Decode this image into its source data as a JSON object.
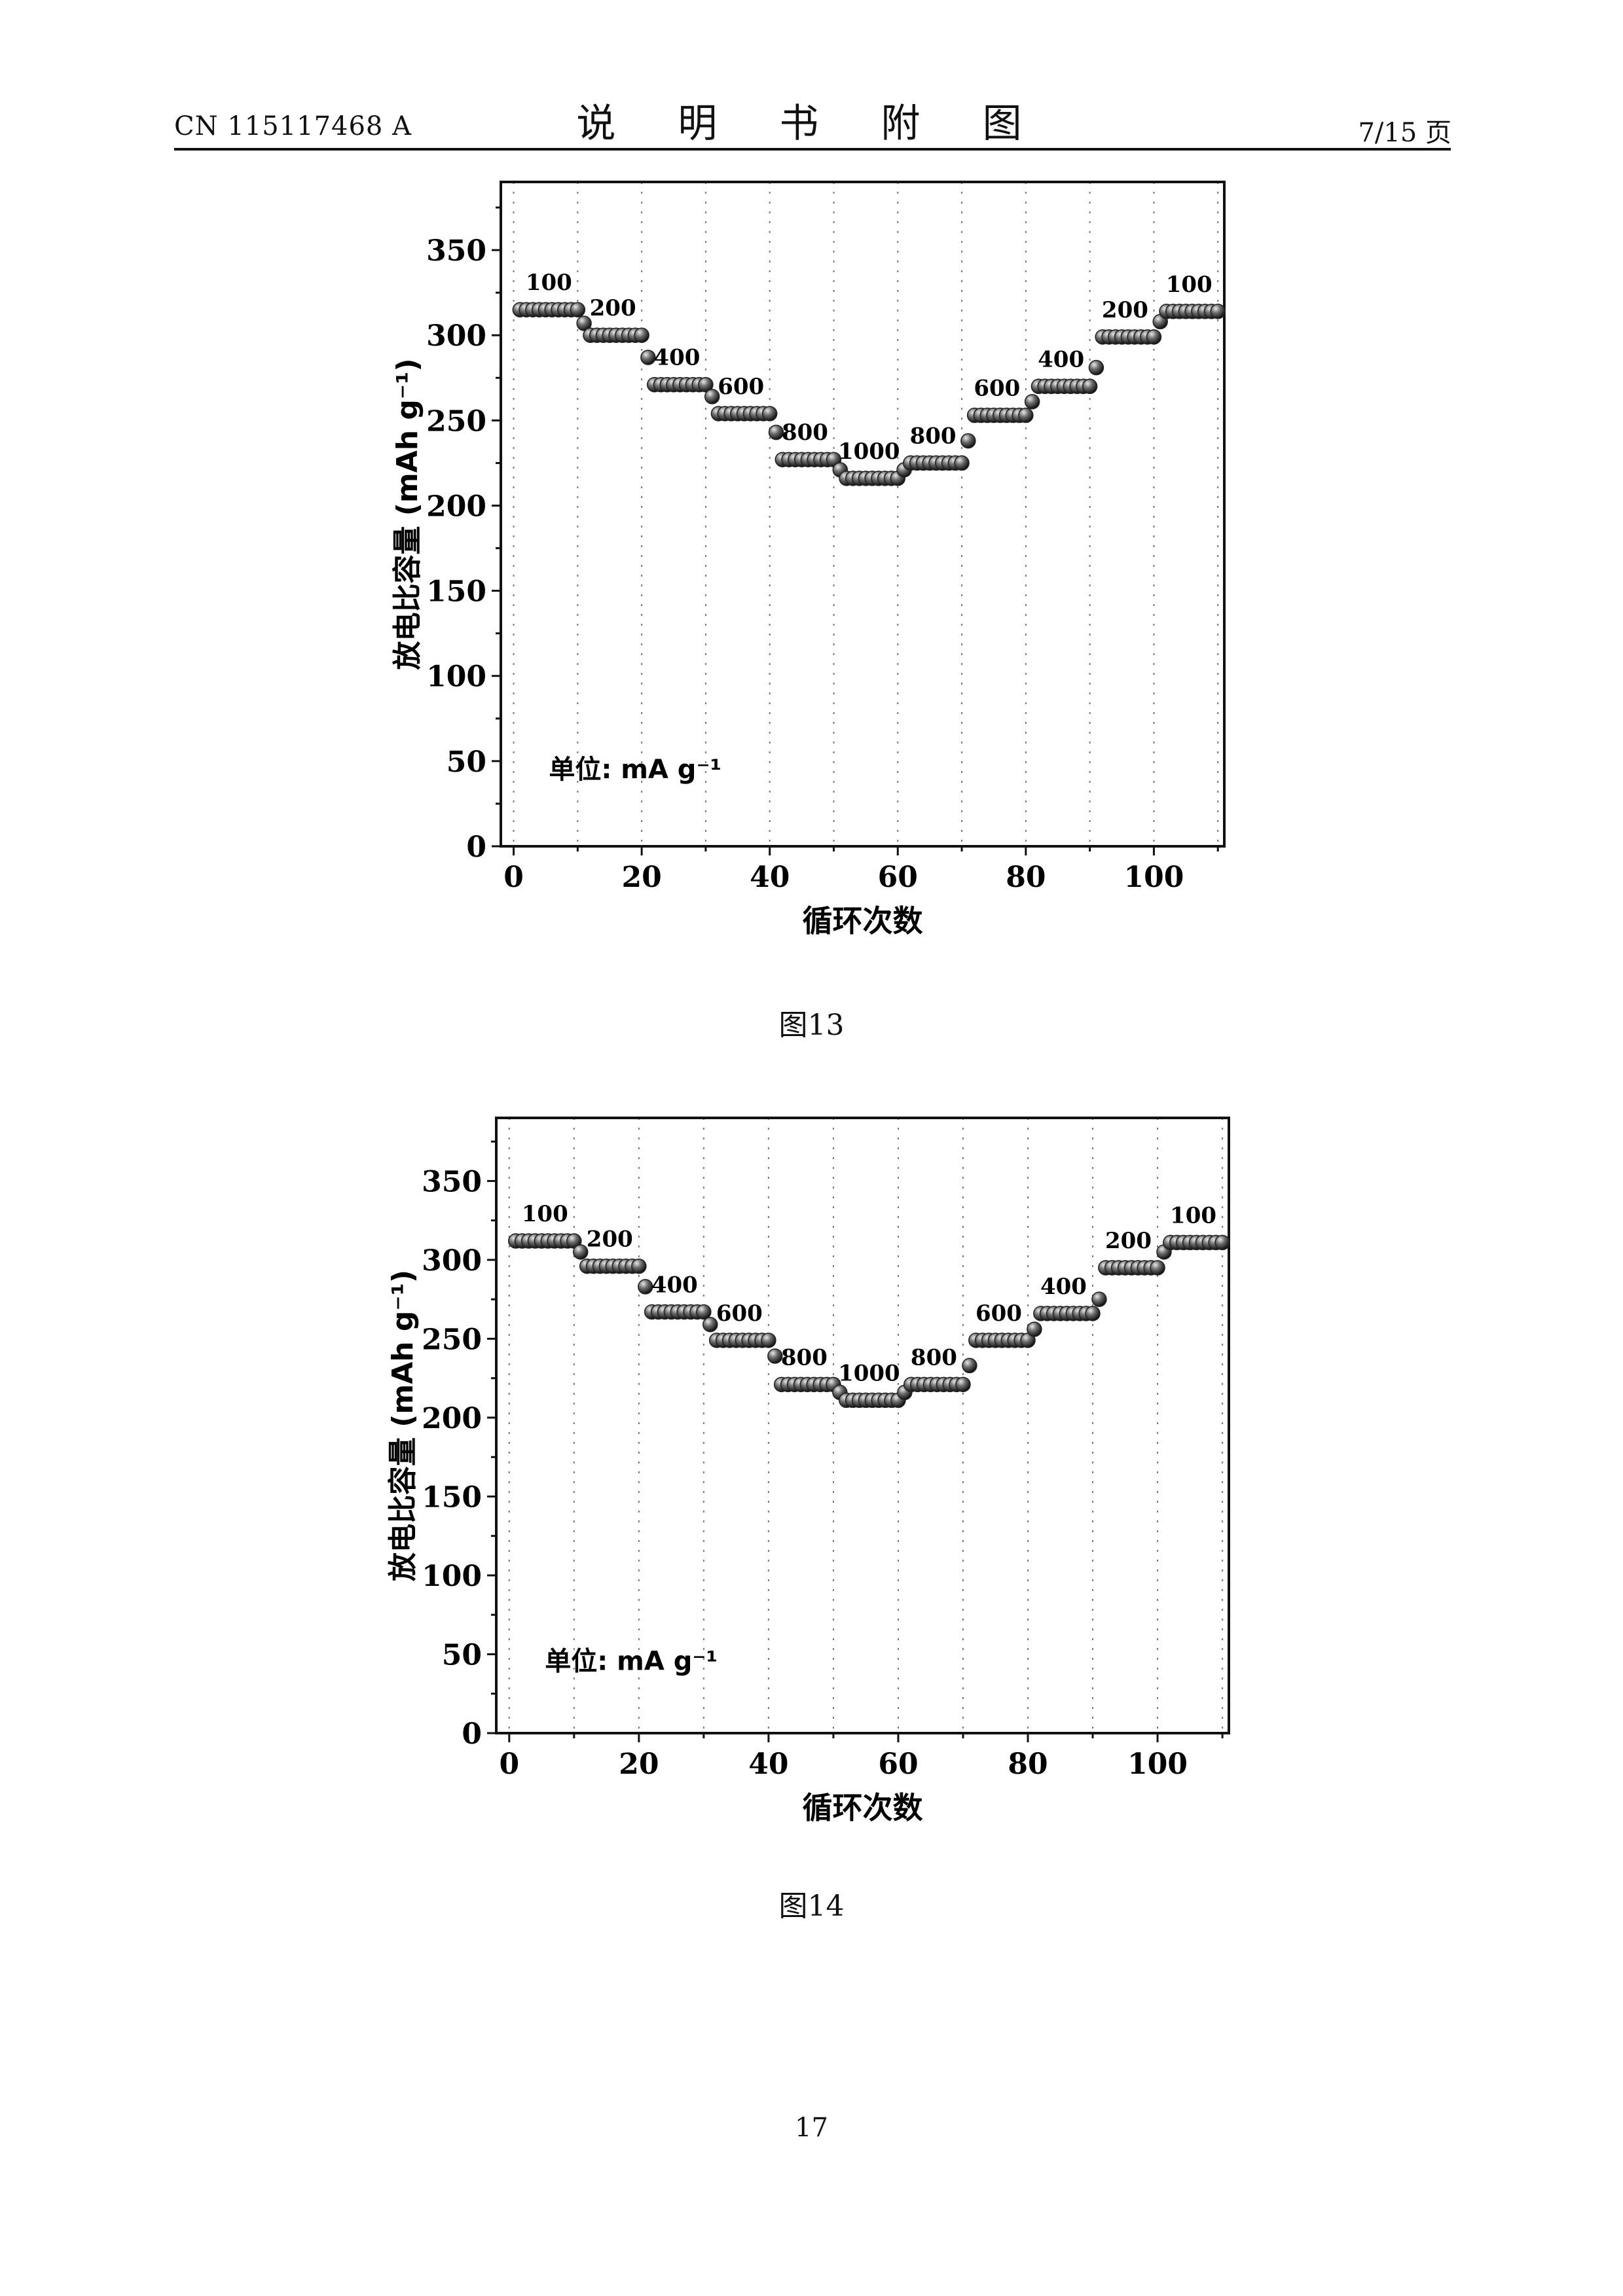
{
  "header": {
    "doc_number": "CN 115117468 A",
    "section_title": "说 明 书 附 图",
    "page_fraction": "7/15 页"
  },
  "figures": [
    {
      "caption": "图13"
    },
    {
      "caption": "图14"
    }
  ],
  "page_number": "17",
  "chart_data": [
    {
      "type": "scatter",
      "title": "",
      "xlabel": "循环次数",
      "ylabel": "放电比容量 (mAh g⁻¹)",
      "xlim": [
        -2,
        111
      ],
      "ylim": [
        0,
        390
      ],
      "xticks": [
        0,
        20,
        40,
        60,
        80,
        100
      ],
      "yticks": [
        0,
        50,
        100,
        150,
        200,
        250,
        300,
        350
      ],
      "grid": "vertical dotted",
      "annotation": "单位: mA g⁻¹",
      "segments": [
        {
          "label": "100",
          "start": 1,
          "end": 10,
          "capacity": 315,
          "first": 315
        },
        {
          "label": "200",
          "start": 11,
          "end": 20,
          "capacity": 300,
          "first": 307
        },
        {
          "label": "400",
          "start": 21,
          "end": 30,
          "capacity": 271,
          "first": 287
        },
        {
          "label": "600",
          "start": 31,
          "end": 40,
          "capacity": 254,
          "first": 264
        },
        {
          "label": "800",
          "start": 41,
          "end": 50,
          "capacity": 227,
          "first": 243
        },
        {
          "label": "1000",
          "start": 51,
          "end": 60,
          "capacity": 216,
          "first": 221
        },
        {
          "label": "800",
          "start": 61,
          "end": 70,
          "capacity": 225,
          "first": 221
        },
        {
          "label": "600",
          "start": 71,
          "end": 80,
          "capacity": 253,
          "first": 238
        },
        {
          "label": "400",
          "start": 81,
          "end": 90,
          "capacity": 270,
          "first": 261
        },
        {
          "label": "200",
          "start": 91,
          "end": 100,
          "capacity": 299,
          "first": 281
        },
        {
          "label": "100",
          "start": 101,
          "end": 110,
          "capacity": 314,
          "first": 308
        }
      ]
    },
    {
      "type": "scatter",
      "title": "",
      "xlabel": "循环次数",
      "ylabel": "放电比容量 (mAh g⁻¹)",
      "xlim": [
        -2,
        111
      ],
      "ylim": [
        0,
        390
      ],
      "xticks": [
        0,
        20,
        40,
        60,
        80,
        100
      ],
      "yticks": [
        0,
        50,
        100,
        150,
        200,
        250,
        300,
        350
      ],
      "grid": "vertical dotted",
      "annotation": "单位: mA g⁻¹",
      "segments": [
        {
          "label": "100",
          "start": 1,
          "end": 10,
          "capacity": 312,
          "first": 312
        },
        {
          "label": "200",
          "start": 11,
          "end": 20,
          "capacity": 296,
          "first": 305
        },
        {
          "label": "400",
          "start": 21,
          "end": 30,
          "capacity": 267,
          "first": 283
        },
        {
          "label": "600",
          "start": 31,
          "end": 40,
          "capacity": 249,
          "first": 259
        },
        {
          "label": "800",
          "start": 41,
          "end": 50,
          "capacity": 221,
          "first": 239
        },
        {
          "label": "1000",
          "start": 51,
          "end": 60,
          "capacity": 211,
          "first": 216
        },
        {
          "label": "800",
          "start": 61,
          "end": 70,
          "capacity": 221,
          "first": 216
        },
        {
          "label": "600",
          "start": 71,
          "end": 80,
          "capacity": 249,
          "first": 233
        },
        {
          "label": "400",
          "start": 81,
          "end": 90,
          "capacity": 266,
          "first": 256
        },
        {
          "label": "200",
          "start": 91,
          "end": 100,
          "capacity": 295,
          "first": 275
        },
        {
          "label": "100",
          "start": 101,
          "end": 110,
          "capacity": 311,
          "first": 305
        }
      ]
    }
  ]
}
